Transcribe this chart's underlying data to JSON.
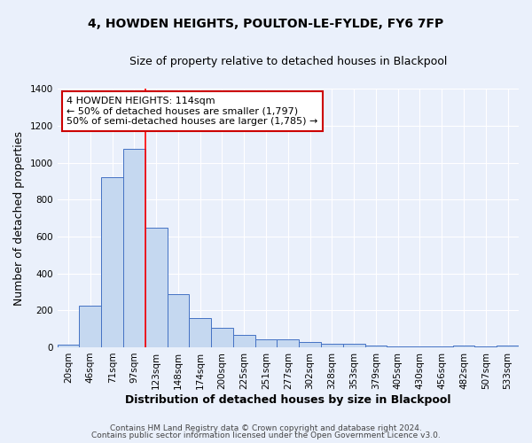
{
  "title": "4, HOWDEN HEIGHTS, POULTON-LE-FYLDE, FY6 7FP",
  "subtitle": "Size of property relative to detached houses in Blackpool",
  "xlabel": "Distribution of detached houses by size in Blackpool",
  "ylabel": "Number of detached properties",
  "categories": [
    "20sqm",
    "46sqm",
    "71sqm",
    "97sqm",
    "123sqm",
    "148sqm",
    "174sqm",
    "200sqm",
    "225sqm",
    "251sqm",
    "277sqm",
    "302sqm",
    "328sqm",
    "353sqm",
    "379sqm",
    "405sqm",
    "430sqm",
    "456sqm",
    "482sqm",
    "507sqm",
    "533sqm"
  ],
  "values": [
    15,
    225,
    920,
    1075,
    650,
    290,
    160,
    105,
    65,
    42,
    42,
    28,
    18,
    18,
    10,
    3,
    3,
    3,
    10,
    3,
    10
  ],
  "bar_color": "#c5d8f0",
  "bar_edge_color": "#4472c4",
  "bg_color": "#eaf0fb",
  "grid_color": "#ffffff",
  "red_line_index": 4,
  "annotation_text": "4 HOWDEN HEIGHTS: 114sqm\n← 50% of detached houses are smaller (1,797)\n50% of semi-detached houses are larger (1,785) →",
  "annotation_box_color": "#ffffff",
  "annotation_box_edge": "#cc0000",
  "footer1": "Contains HM Land Registry data © Crown copyright and database right 2024.",
  "footer2": "Contains public sector information licensed under the Open Government Licence v3.0.",
  "ylim": [
    0,
    1400
  ],
  "yticks": [
    0,
    200,
    400,
    600,
    800,
    1000,
    1200,
    1400
  ],
  "title_fontsize": 10,
  "subtitle_fontsize": 9,
  "ylabel_fontsize": 9,
  "xlabel_fontsize": 9,
  "tick_fontsize": 7.5,
  "footer_fontsize": 6.5,
  "annot_fontsize": 8
}
